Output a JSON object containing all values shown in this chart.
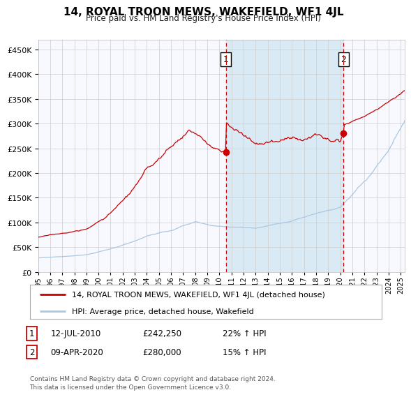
{
  "title": "14, ROYAL TROON MEWS, WAKEFIELD, WF1 4JL",
  "subtitle": "Price paid vs. HM Land Registry's House Price Index (HPI)",
  "legend_line1": "14, ROYAL TROON MEWS, WAKEFIELD, WF1 4JL (detached house)",
  "legend_line2": "HPI: Average price, detached house, Wakefield",
  "annotation1_label": "1",
  "annotation1_date": "12-JUL-2010",
  "annotation1_price": "£242,250",
  "annotation1_hpi": "22% ↑ HPI",
  "annotation2_label": "2",
  "annotation2_date": "09-APR-2020",
  "annotation2_price": "£280,000",
  "annotation2_hpi": "15% ↑ HPI",
  "footer": "Contains HM Land Registry data © Crown copyright and database right 2024.\nThis data is licensed under the Open Government Licence v3.0.",
  "hpi_color": "#aac8e0",
  "price_color": "#cc0000",
  "marker_color": "#cc0000",
  "vline_color": "#cc0000",
  "shade_color": "#daeaf5",
  "grid_color": "#cccccc",
  "bg_color": "#f8f8ff",
  "ylim": [
    0,
    470000
  ],
  "yticks": [
    0,
    50000,
    100000,
    150000,
    200000,
    250000,
    300000,
    350000,
    400000,
    450000
  ],
  "year_start": 1995,
  "year_end": 2025,
  "sale1_year": 2010.53,
  "sale1_price": 242250,
  "sale2_year": 2020.27,
  "sale2_price": 280000
}
